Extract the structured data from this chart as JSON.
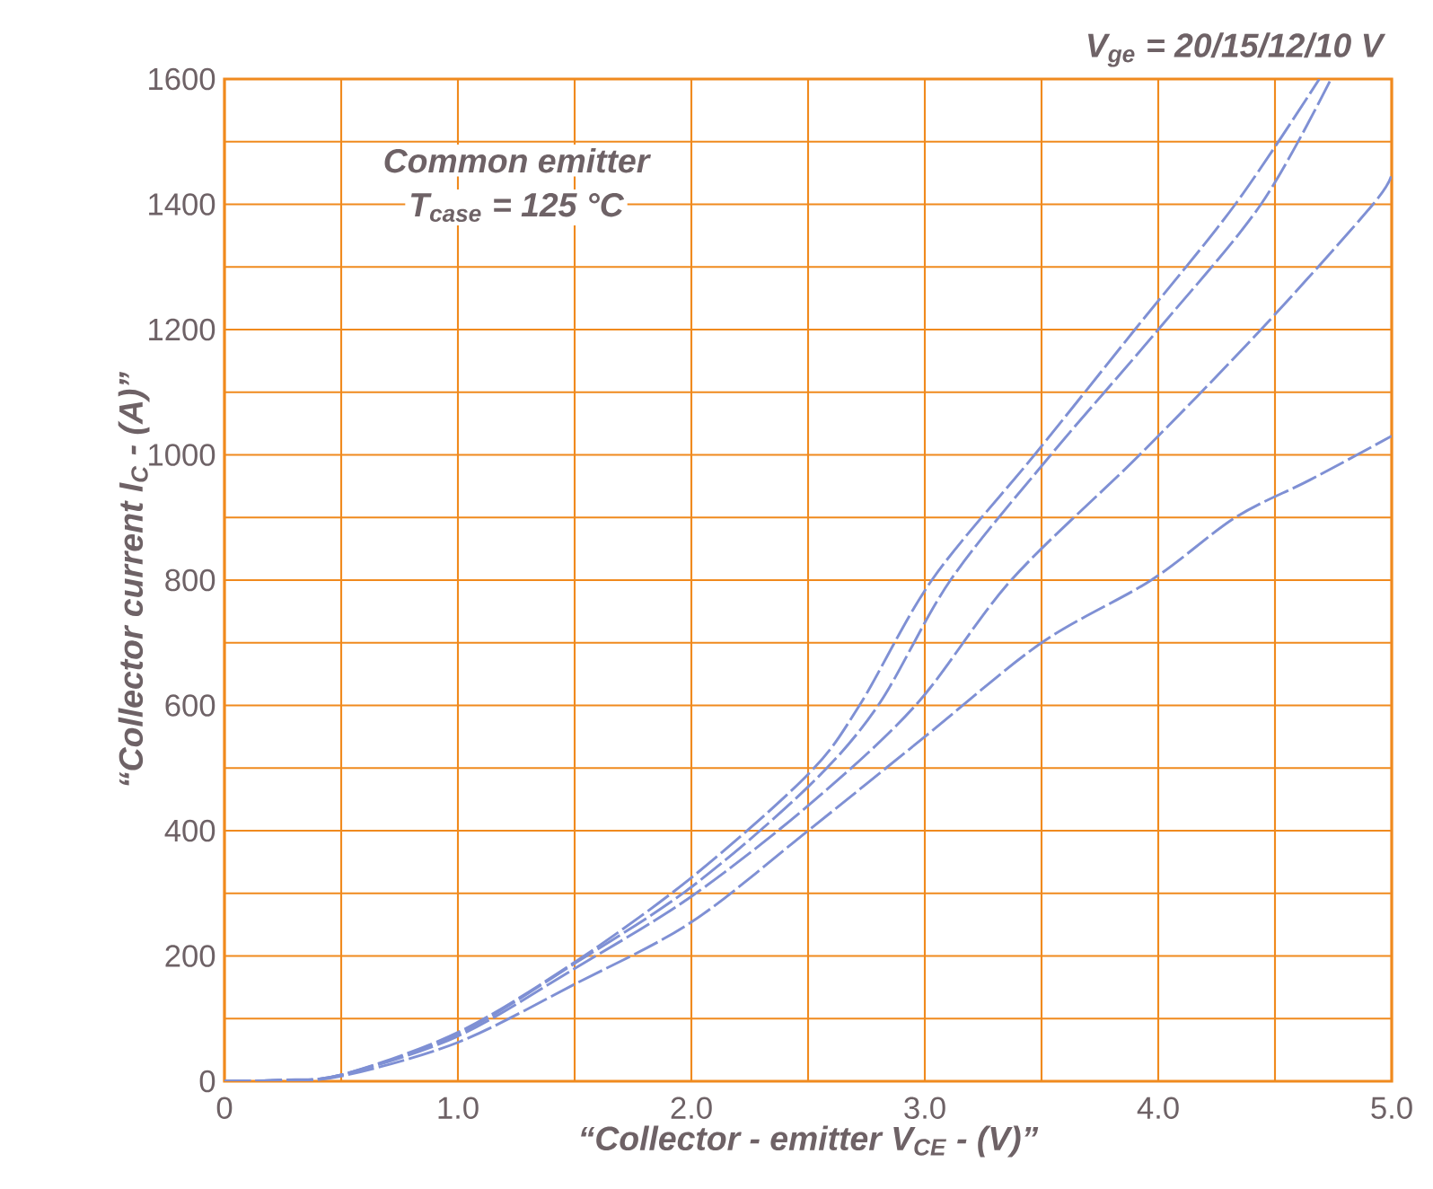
{
  "chart_data": {
    "type": "line",
    "xlabel": "“Collector - emitter V$_{CE}$ - (V)”",
    "ylabel": "“Collector current I$_{C}$ - (A)”",
    "annotations": [
      "V$_{ge}$ = 20/15/12/10 V",
      "Common emitter",
      "T$_{case}$ = 125  °C"
    ],
    "xlim": [
      0,
      5
    ],
    "ylim": [
      0,
      1600
    ],
    "xticks": [
      0,
      {
        "value": 0.5,
        "label": null
      },
      {
        "value": 1,
        "label": "1.0"
      },
      {
        "value": 1.5,
        "label": null
      },
      {
        "value": 2,
        "label": "2.0"
      },
      {
        "value": 2.5,
        "label": null
      },
      {
        "value": 3,
        "label": "3.0"
      },
      {
        "value": 3.5,
        "label": null
      },
      {
        "value": 4,
        "label": "4.0"
      },
      {
        "value": 4.5,
        "label": null
      },
      {
        "value": 5,
        "label": "5.0"
      }
    ],
    "yticks": [
      0,
      {
        "value": 100,
        "label": null
      },
      200,
      {
        "value": 300,
        "label": null
      },
      400,
      {
        "value": 500,
        "label": null
      },
      600,
      {
        "value": 700,
        "label": null
      },
      800,
      {
        "value": 900,
        "label": null
      },
      1000,
      {
        "value": 1100,
        "label": null
      },
      1200,
      {
        "value": 1300,
        "label": null
      },
      1400,
      {
        "value": 1500,
        "label": null
      },
      1600
    ],
    "grid": true,
    "line_style": "dashed",
    "marker": "none",
    "series": [
      {
        "color": "#7f90d4",
        "x": [
          0,
          0.25,
          0.5,
          1.0,
          1.5,
          2.0,
          2.5,
          2.72,
          3.03,
          3.47,
          3.9,
          4.33,
          4.69
        ],
        "values": [
          0,
          2,
          10,
          78,
          190,
          325,
          490,
          600,
          800,
          1000,
          1200,
          1400,
          1600
        ]
      },
      {
        "color": "#7f90d4",
        "x": [
          0,
          0.25,
          0.5,
          1.0,
          1.5,
          2.0,
          2.5,
          2.8,
          3.11,
          3.54,
          4.0,
          4.44,
          4.74
        ],
        "values": [
          0,
          2,
          10,
          75,
          188,
          310,
          470,
          600,
          800,
          1000,
          1200,
          1400,
          1600
        ]
      },
      {
        "color": "#7f90d4",
        "x": [
          0,
          0.25,
          0.5,
          1.0,
          1.5,
          2.0,
          2.5,
          2.96,
          3.37,
          3.92,
          4.44,
          4.92,
          5.0
        ],
        "values": [
          0,
          2,
          10,
          72,
          180,
          295,
          440,
          600,
          800,
          1000,
          1200,
          1400,
          1450
        ]
      },
      {
        "color": "#7f90d4",
        "x": [
          0,
          0.25,
          0.5,
          1.0,
          1.5,
          2.0,
          2.5,
          3.0,
          3.5,
          3.97,
          4.33,
          4.65,
          5.0
        ],
        "values": [
          0,
          2,
          8,
          62,
          155,
          254,
          400,
          550,
          700,
          800,
          900,
          960,
          1030
        ]
      }
    ]
  }
}
